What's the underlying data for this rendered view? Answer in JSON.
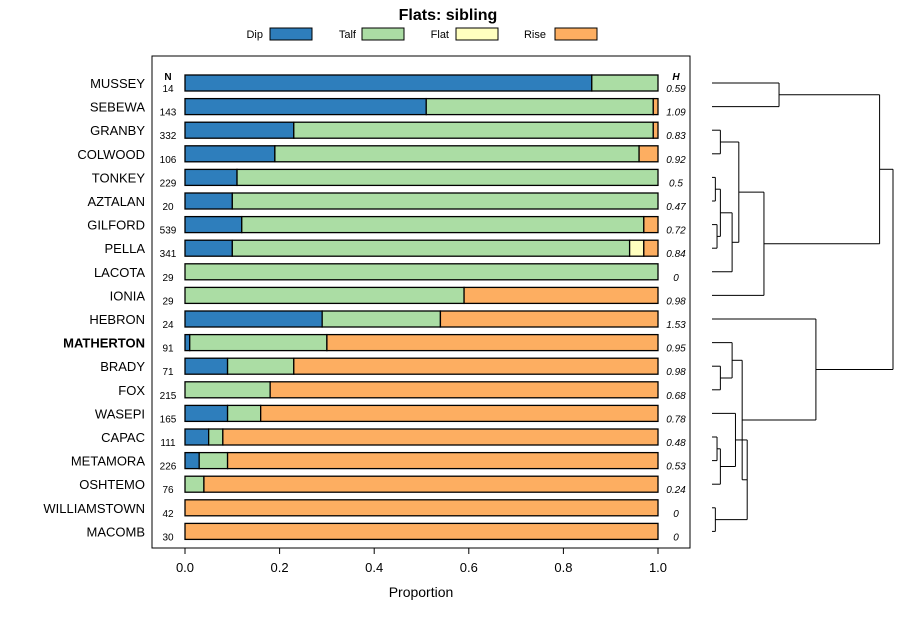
{
  "chart_data": {
    "type": "bar",
    "orientation": "horizontal",
    "stacked": true,
    "title": "Flats: sibling",
    "xlabel": "Proportion",
    "ylabel": "",
    "xlim": [
      0,
      1
    ],
    "x_ticks": [
      "0.0",
      "0.2",
      "0.4",
      "0.6",
      "0.8",
      "1.0"
    ],
    "x_tick_values": [
      0,
      0.2,
      0.4,
      0.6,
      0.8,
      1.0
    ],
    "legend": [
      {
        "name": "Dip",
        "color": "#2e7ebc"
      },
      {
        "name": "Talf",
        "color": "#abdda4"
      },
      {
        "name": "Flat",
        "color": "#ffffbf"
      },
      {
        "name": "Rise",
        "color": "#fdae61"
      }
    ],
    "n_header": "N",
    "h_header": "H",
    "categories": [
      "MUSSEY",
      "SEBEWA",
      "GRANBY",
      "COLWOOD",
      "TONKEY",
      "AZTALAN",
      "GILFORD",
      "PELLA",
      "LACOTA",
      "IONIA",
      "HEBRON",
      "MATHERTON",
      "BRADY",
      "FOX",
      "WASEPI",
      "CAPAC",
      "METAMORA",
      "OSHTEMO",
      "WILLIAMSTOWN",
      "MACOMB"
    ],
    "highlighted": "MATHERTON",
    "n": [
      "14",
      "143",
      "332",
      "106",
      "229",
      "20",
      "539",
      "341",
      "29",
      "29",
      "24",
      "91",
      "71",
      "215",
      "165",
      "111",
      "226",
      "76",
      "42",
      "30"
    ],
    "h": [
      "0.59",
      "1.09",
      "0.83",
      "0.92",
      "0.5",
      "0.47",
      "0.72",
      "0.84",
      "0",
      "0.98",
      "1.53",
      "0.95",
      "0.98",
      "0.68",
      "0.78",
      "0.48",
      "0.53",
      "0.24",
      "0",
      "0"
    ],
    "series": [
      {
        "name": "Dip",
        "values": [
          0.86,
          0.51,
          0.23,
          0.19,
          0.11,
          0.1,
          0.12,
          0.1,
          0.0,
          0.0,
          0.29,
          0.01,
          0.09,
          0.0,
          0.09,
          0.05,
          0.03,
          0.0,
          0.0,
          0.0
        ]
      },
      {
        "name": "Talf",
        "values": [
          0.14,
          0.48,
          0.76,
          0.77,
          0.89,
          0.9,
          0.85,
          0.84,
          1.0,
          0.59,
          0.25,
          0.29,
          0.14,
          0.18,
          0.07,
          0.03,
          0.06,
          0.04,
          0.0,
          0.0
        ]
      },
      {
        "name": "Flat",
        "values": [
          0.0,
          0.0,
          0.0,
          0.0,
          0.0,
          0.0,
          0.0,
          0.03,
          0.0,
          0.0,
          0.0,
          0.0,
          0.0,
          0.0,
          0.0,
          0.0,
          0.0,
          0.0,
          0.0,
          0.0
        ]
      },
      {
        "name": "Rise",
        "values": [
          0.0,
          0.01,
          0.01,
          0.04,
          0.0,
          0.0,
          0.03,
          0.03,
          0.0,
          0.41,
          0.46,
          0.7,
          0.77,
          0.82,
          0.84,
          0.92,
          0.91,
          0.96,
          1.0,
          1.0
        ]
      }
    ],
    "dendrogram": {
      "leaves": [
        "MUSSEY",
        "SEBEWA",
        "GRANBY",
        "COLWOOD",
        "TONKEY",
        "AZTALAN",
        "GILFORD",
        "PELLA",
        "LACOTA",
        "IONIA",
        "HEBRON",
        "MATHERTON",
        "BRADY",
        "FOX",
        "WASEPI",
        "CAPAC",
        "METAMORA",
        "OSHTEMO",
        "WILLIAMSTOWN",
        "MACOMB"
      ],
      "merges": [
        {
          "a": "L0",
          "b": "L1",
          "height": 0.4,
          "id": "m1"
        },
        {
          "a": "L2",
          "b": "L3",
          "height": 0.05,
          "id": "m2"
        },
        {
          "a": "L4",
          "b": "L5",
          "height": 0.02,
          "id": "m3"
        },
        {
          "a": "L6",
          "b": "L7",
          "height": 0.03,
          "id": "m4"
        },
        {
          "a": "m3",
          "b": "m4",
          "height": 0.05,
          "id": "m5"
        },
        {
          "a": "m5",
          "b": "L8",
          "height": 0.12,
          "id": "m6"
        },
        {
          "a": "m2",
          "b": "m6",
          "height": 0.16,
          "id": "m7"
        },
        {
          "a": "m7",
          "b": "L9",
          "height": 0.31,
          "id": "m8"
        },
        {
          "a": "m1",
          "b": "m8",
          "height": 1.0,
          "id": "m9"
        },
        {
          "a": "L12",
          "b": "L13",
          "height": 0.05,
          "id": "m10"
        },
        {
          "a": "L11",
          "b": "m10",
          "height": 0.12,
          "id": "m11"
        },
        {
          "a": "L15",
          "b": "L16",
          "height": 0.03,
          "id": "m12"
        },
        {
          "a": "m12",
          "b": "L17",
          "height": 0.05,
          "id": "m13"
        },
        {
          "a": "L14",
          "b": "m13",
          "height": 0.14,
          "id": "m14"
        },
        {
          "a": "L18",
          "b": "L19",
          "height": 0.02,
          "id": "m15"
        },
        {
          "a": "m14",
          "b": "m15",
          "height": 0.21,
          "id": "m16"
        },
        {
          "a": "m11",
          "b": "m16",
          "height": 0.18,
          "id": "m17"
        },
        {
          "a": "L10",
          "b": "m17",
          "height": 0.62,
          "id": "m18"
        },
        {
          "a": "m9",
          "b": "m18",
          "height": 1.08,
          "id": "m19"
        }
      ]
    }
  }
}
